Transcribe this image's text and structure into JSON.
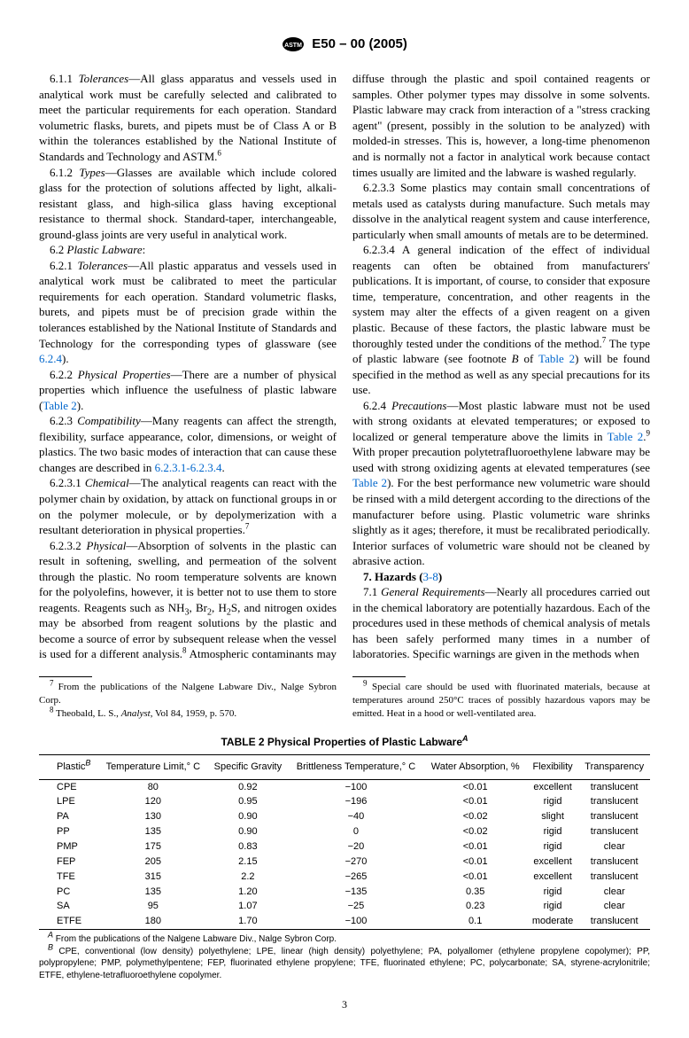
{
  "header": {
    "standard": "E50 – 00  (2005)"
  },
  "body": {
    "p611": "6.1.1 ",
    "p611_title": "Tolerances",
    "p611_text": "—All glass apparatus and vessels used in analytical work must be carefully selected and calibrated to meet the particular requirements for each operation. Standard volumetric flasks, burets, and pipets must be of Class A or B within the tolerances established by the National Institute of Standards and Technology and ASTM.",
    "fn6": "6",
    "p612": "6.1.2 ",
    "p612_title": "Types",
    "p612_text": "—Glasses are available which include colored glass for the protection of solutions affected by light, alkali-resistant glass, and high-silica glass having exceptional resistance to thermal shock. Standard-taper, interchangeable, ground-glass joints are very useful in analytical work.",
    "p62": "6.2 ",
    "p62_title": "Plastic Labware",
    "p62_suffix": ":",
    "p621": "6.2.1 ",
    "p621_title": "Tolerances",
    "p621_text": "—All plastic apparatus and vessels used in analytical work must be calibrated to meet the particular requirements for each operation. Standard volumetric flasks, burets, and pipets must be of precision grade within the tolerances established by the National Institute of Standards and Technology for the corresponding types of glassware (see ",
    "ref624": "6.2.4",
    "p621_end": ").",
    "p622": "6.2.2 ",
    "p622_title": "Physical Properties",
    "p622_text": "—There are a number of physical properties which influence the usefulness of plastic labware (",
    "refT2": "Table 2",
    "p622_end": ").",
    "p623": "6.2.3 ",
    "p623_title": "Compatibility",
    "p623_text": "—Many reagents can affect the strength, flexibility, surface appearance, color, dimensions, or weight of plastics. The two basic modes of interaction that can cause these changes are described in ",
    "ref6231": "6.2.3.1-6.2.3.4",
    "p623_end": ".",
    "p6231": "6.2.3.1 ",
    "p6231_title": "Chemical",
    "p6231_text": "—The analytical reagents can react with the polymer chain by oxidation, by attack on functional groups in or on the polymer molecule, or by depolymerization with a resultant deterioration in physical properties.",
    "fn7": "7",
    "p6232": "6.2.3.2 ",
    "p6232_title": "Physical",
    "p6232_text1": "—Absorption of solvents in the plastic can result in softening, swelling, and permeation of the solvent through the plastic. No room temperature solvents are known for the polyolefins, however, it is better not to use them to store reagents. Reagents such as NH",
    "sub3": "3",
    "p6232_text2": ", Br",
    "sub2": "2",
    "p6232_text3": ", H",
    "p6232_text4": "S, and nitrogen oxides may be absorbed from reagent solutions by the plastic and become a source of error by subsequent release when the vessel is used for a different analysis.",
    "fn8": "8",
    "p6232_text5": " Atmospheric contaminants may diffuse through the plastic and spoil contained reagents or samples. Other polymer types may dissolve in some solvents. Plastic labware may crack from interaction of a \"stress cracking agent\" (present, possibly in the solution to be analyzed) with molded-in stresses. This is, however, a long-time phenomenon and is normally not a factor in analytical work because contact times usually are limited and the labware is washed regularly.",
    "p6233": "6.2.3.3 Some plastics may contain small concentrations of metals used as catalysts during manufacture. Such metals may dissolve in the analytical reagent system and cause interference, particularly when small amounts of metals are to be determined.",
    "p6234": "6.2.3.4 A general indication of the effect of individual reagents can often be obtained from manufacturers' publications. It is important, of course, to consider that exposure time, temperature, concentration, and other reagents in the system may alter the effects of a given reagent on a given plastic. Because of these factors, the plastic labware must be thoroughly tested under the conditions of the method.",
    "p6234_text2": " The type of plastic labware (see footnote ",
    "fnB": "B",
    "p6234_text3": " of ",
    "p6234_text4": ") will be found specified in the method as well as any special precautions for its use.",
    "p624": "6.2.4 ",
    "p624_title": "Precautions",
    "p624_text1": "—Most plastic labware must not be used with strong oxidants at elevated temperatures; or exposed to localized or general temperature above the limits in ",
    "p624_text2": ".",
    "fn9": "9",
    "p624_text3": " With proper precaution polytetrafluoroethylene labware may be used with strong oxidizing agents at elevated temperatures (see ",
    "p624_text4": "). For the best performance new volumetric ware should be rinsed with a mild detergent according to the directions of the manufacturer before using. Plastic volumetric ware shrinks slightly as it ages; therefore, it must be recalibrated periodically. Interior surfaces of volumetric ware should not be cleaned by abrasive action.",
    "sec7": "7. Hazards (",
    "ref38": "3-8",
    "sec7_end": ")",
    "p71": "7.1 ",
    "p71_title": "General Requirements",
    "p71_text": "—Nearly all procedures carried out in the chemical laboratory are potentially hazardous. Each of the procedures used in these methods of chemical analysis of metals has been safely performed many times in a number of laboratories. Specific warnings are given in the methods when"
  },
  "footnotes": {
    "f7": " From the publications of the Nalgene Labware Div., Nalge Sybron Corp.",
    "f8a": " Theobald, L. S., ",
    "f8b": "Analyst",
    "f8c": ", Vol 84, 1959, p. 570.",
    "f9": " Special care should be used with fluorinated materials, because at temperatures around 250°C traces of possibly hazardous vapors may be emitted. Heat in a hood or well-ventilated area."
  },
  "table": {
    "title": "TABLE 2  Physical Properties of Plastic Labware",
    "supA": "A",
    "headers": [
      "Plastic",
      "Temperature Limit,° C",
      "Specific Gravity",
      "Brittleness Temperature,° C",
      "Water Absorption, %",
      "Flexibility",
      "Transparency"
    ],
    "supB": "B",
    "rows": [
      [
        "CPE",
        "80",
        "0.92",
        "−100",
        "<0.01",
        "excellent",
        "translucent"
      ],
      [
        "LPE",
        "120",
        "0.95",
        "−196",
        "<0.01",
        "rigid",
        "translucent"
      ],
      [
        "PA",
        "130",
        "0.90",
        "−40",
        "<0.02",
        "slight",
        "translucent"
      ],
      [
        "PP",
        "135",
        "0.90",
        "0",
        "<0.02",
        "rigid",
        "translucent"
      ],
      [
        "PMP",
        "175",
        "0.83",
        "−20",
        "<0.01",
        "rigid",
        "clear"
      ],
      [
        "FEP",
        "205",
        "2.15",
        "−270",
        "<0.01",
        "excellent",
        "translucent"
      ],
      [
        "TFE",
        "315",
        "2.2",
        "−265",
        "<0.01",
        "excellent",
        "translucent"
      ],
      [
        "PC",
        "135",
        "1.20",
        "−135",
        "0.35",
        "rigid",
        "clear"
      ],
      [
        "SA",
        "95",
        "1.07",
        "−25",
        "0.23",
        "rigid",
        "clear"
      ],
      [
        "ETFE",
        "180",
        "1.70",
        "−100",
        "0.1",
        "moderate",
        "translucent"
      ]
    ],
    "noteA": " From the publications of the Nalgene Labware Div., Nalge Sybron Corp.",
    "noteB": " CPE, conventional (low density) polyethylene; LPE, linear (high density) polyethylene; PA, polyallomer (ethylene propylene copolymer); PP, polypropylene; PMP, polymethylpentene; FEP, fluorinated ethylene propylene; TFE, fluorinated ethylene; PC, polycarbonate; SA, styrene-acrylonitrile; ETFE, ethylene-tetrafluoroethylene copolymer."
  },
  "page": "3"
}
